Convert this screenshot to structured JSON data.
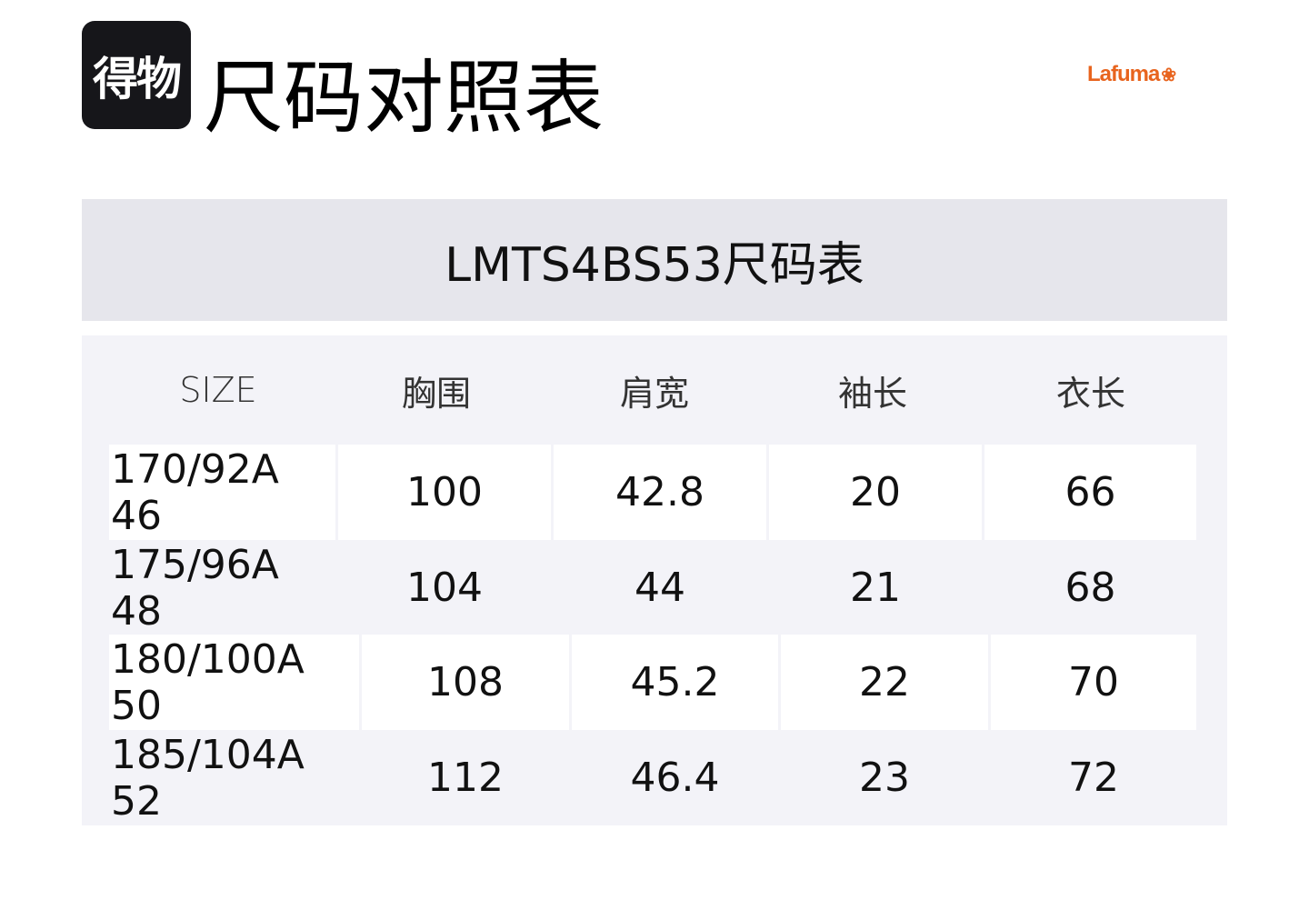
{
  "header": {
    "app_logo_text": "得物",
    "title": "尺码对照表",
    "brand": "Lafuma",
    "brand_color": "#e8641e"
  },
  "banner": {
    "title": "LMTS4BS53尺码表"
  },
  "table": {
    "columns": [
      "SIZE",
      "胸围",
      "肩宽",
      "袖长",
      "衣长"
    ],
    "rows": [
      [
        "170/92A 46",
        "100",
        "42.8",
        "20",
        "66"
      ],
      [
        "175/96A 48",
        "104",
        "44",
        "21",
        "68"
      ],
      [
        "180/100A 50",
        "108",
        "45.2",
        "22",
        "70"
      ],
      [
        "185/104A 52",
        "112",
        "46.4",
        "23",
        "72"
      ]
    ]
  }
}
